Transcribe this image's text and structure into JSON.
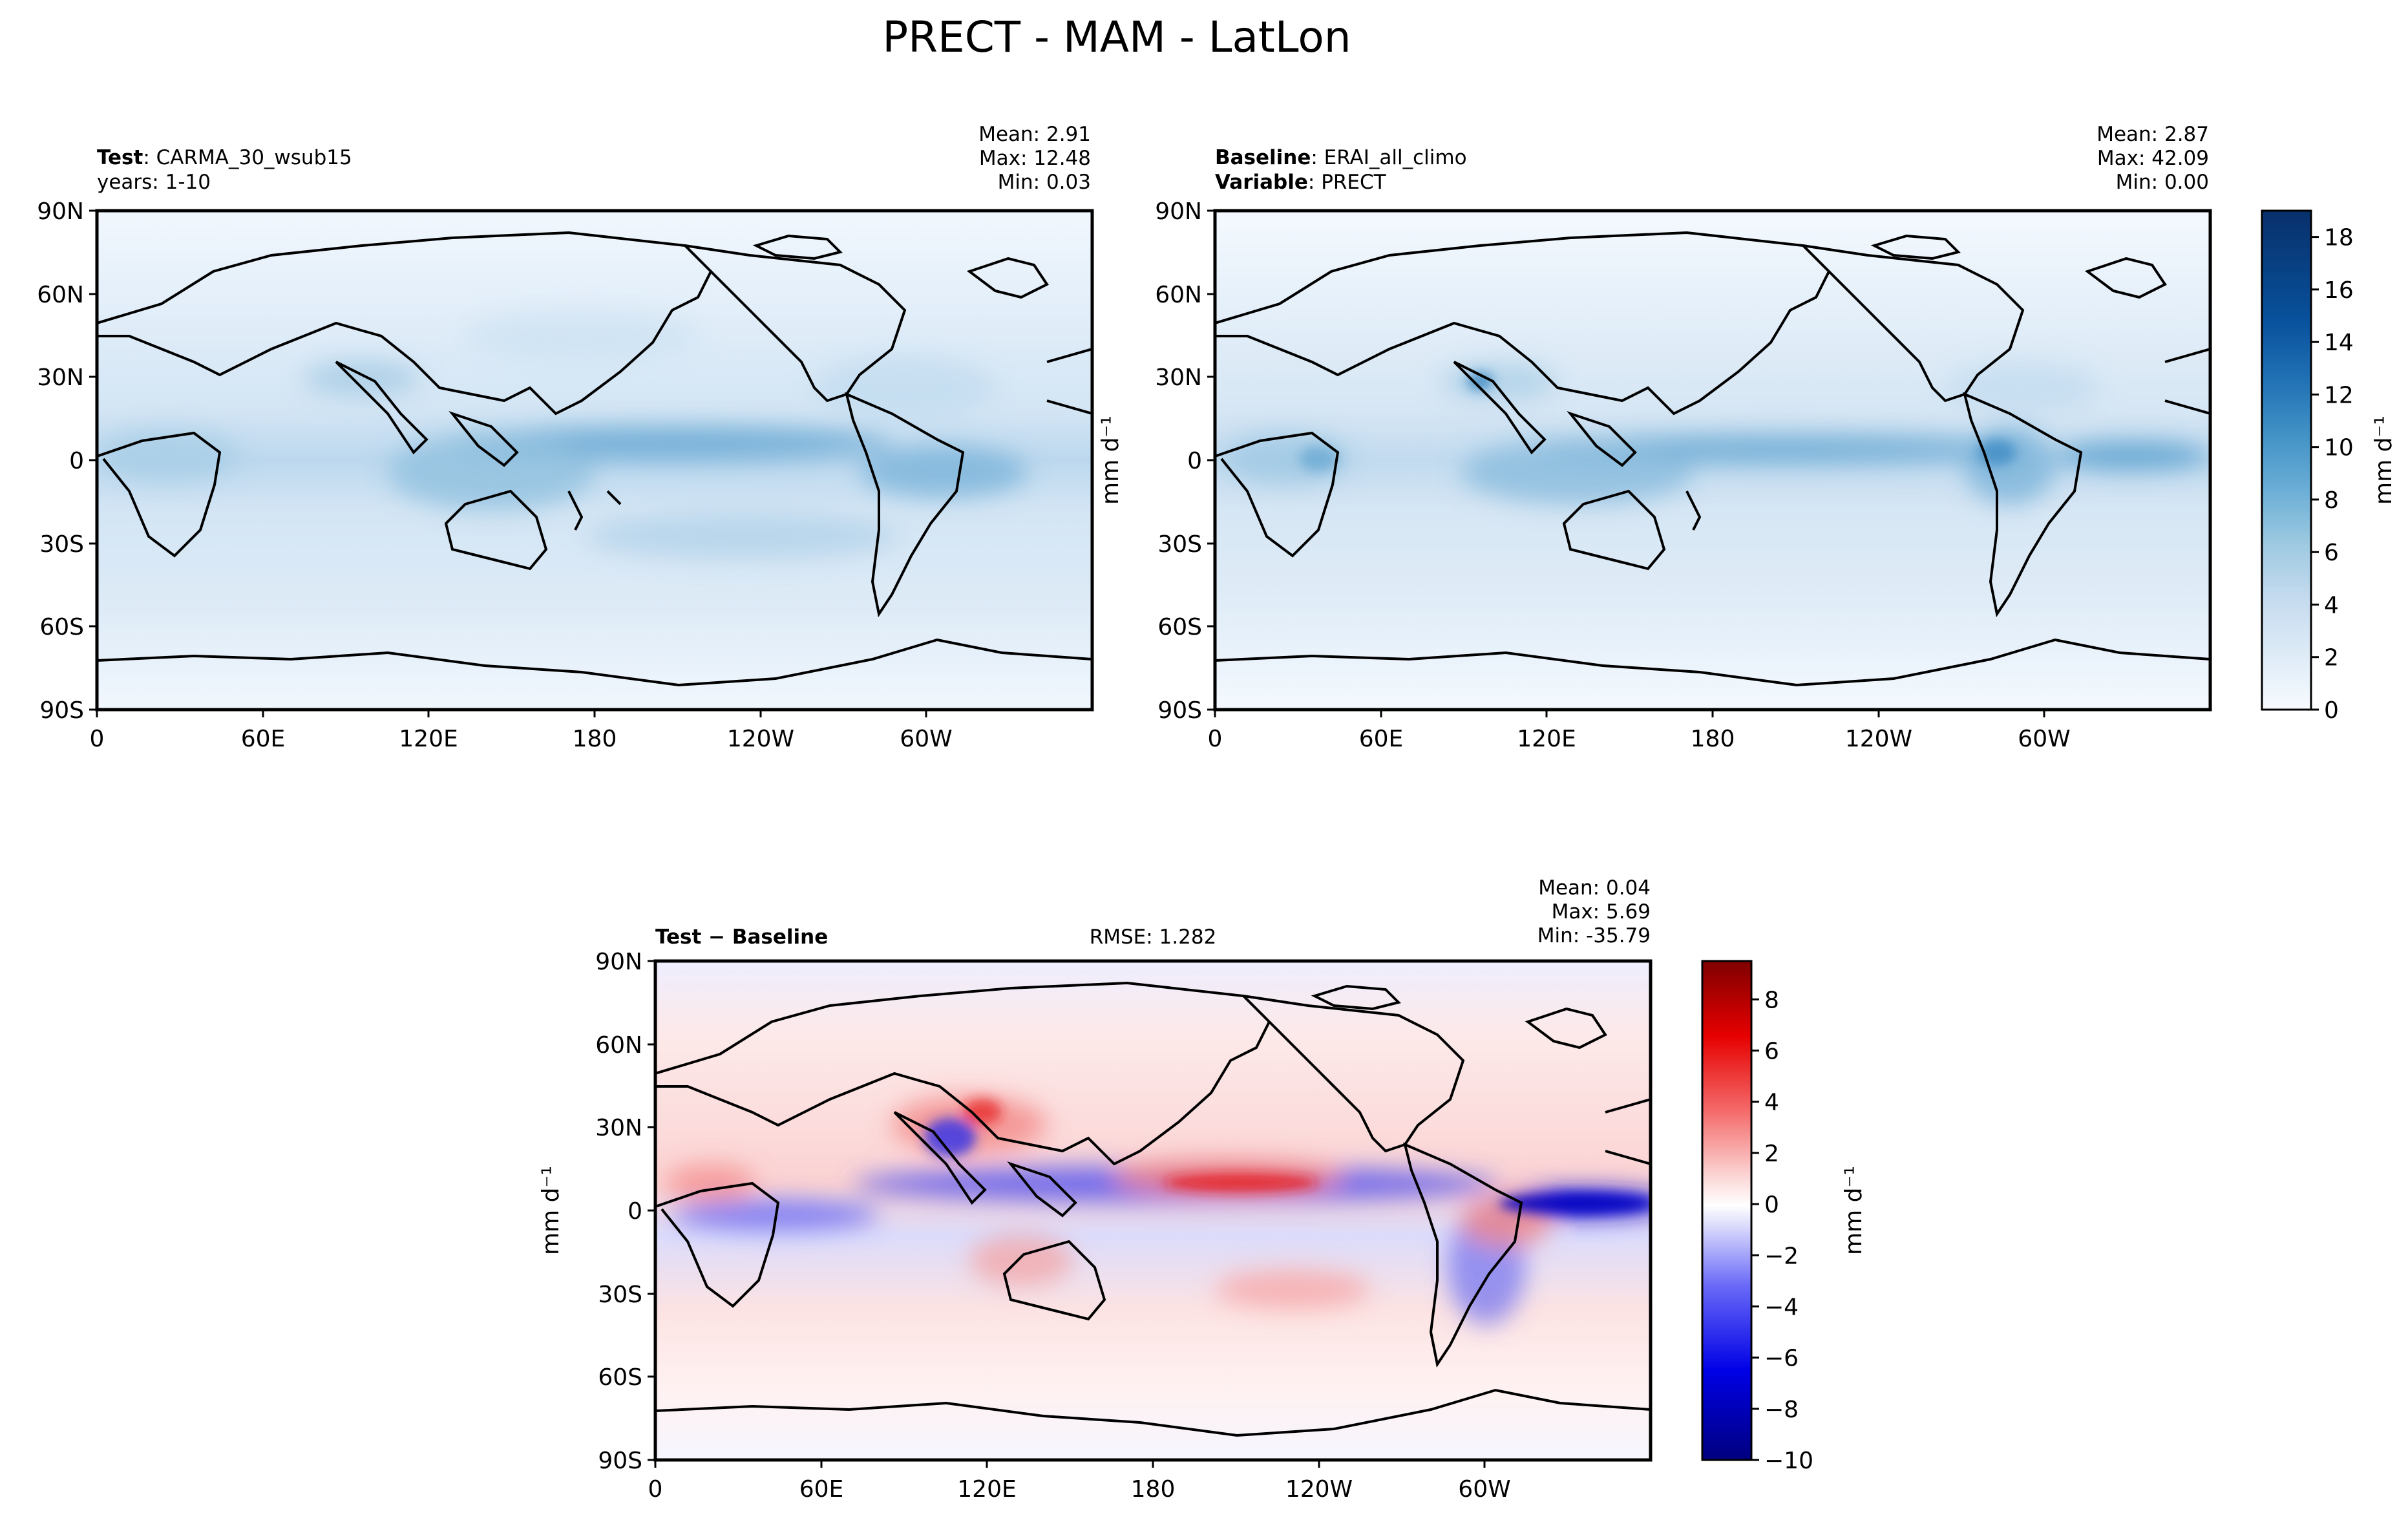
{
  "title": "PRECT - MAM - LatLon",
  "panels": {
    "test": {
      "label_bold": "Test",
      "label_rest": ": CARMA_30_wsub15",
      "line2": "years: 1-10",
      "stats": [
        "Mean:  2.91",
        "Max: 12.48",
        "Min:  0.03"
      ]
    },
    "baseline": {
      "label_bold": "Baseline",
      "label_rest": ": ERAI_all_climo",
      "line2_bold": "Variable",
      "line2_rest": ": PRECT",
      "stats": [
        "Mean:  2.87",
        "Max: 42.09",
        "Min:  0.00"
      ]
    },
    "diff": {
      "label": "Test − Baseline",
      "rmse": "RMSE: 1.282",
      "stats": [
        "Mean:  0.04",
        "Max:  5.69",
        "Min: -35.79"
      ]
    }
  },
  "units_label": "mm d⁻¹",
  "colors": {
    "blues": [
      "#f7fbff",
      "#ebf3fb",
      "#deebf7",
      "#d2e3f3",
      "#c6dbef",
      "#b2d2e8",
      "#9ecae1",
      "#84bcdb",
      "#6baed6",
      "#57a0ce",
      "#4292c6",
      "#3282be",
      "#2171b5",
      "#1561a9",
      "#08519c",
      "#08458a",
      "#083a7a",
      "#08306b"
    ],
    "diverging_low": "#00007f",
    "diverging_mid": "#ffffff",
    "diverging_high": "#7f0000",
    "coast": "#000000"
  },
  "chart_data": [
    {
      "type": "heatmap",
      "panel": "test",
      "field": "PRECT",
      "x_ticks": [
        "0",
        "60E",
        "120E",
        "180",
        "120W",
        "60W"
      ],
      "y_ticks": [
        "90N",
        "60N",
        "30N",
        "0",
        "30S",
        "60S",
        "90S"
      ],
      "xlim": [
        0,
        360
      ],
      "ylim": [
        -90,
        90
      ],
      "colorbar": "shared with baseline",
      "mean": 2.91,
      "max": 12.48,
      "min": 0.03
    },
    {
      "type": "heatmap",
      "panel": "baseline",
      "field": "PRECT",
      "x_ticks": [
        "0",
        "60E",
        "120E",
        "180",
        "120W",
        "60W"
      ],
      "y_ticks": [
        "90N",
        "60N",
        "30N",
        "0",
        "30S",
        "60S",
        "90S"
      ],
      "xlim": [
        0,
        360
      ],
      "ylim": [
        -90,
        90
      ],
      "colorbar_ticks": [
        "0",
        "2",
        "4",
        "6",
        "8",
        "10",
        "12",
        "14",
        "16",
        "18"
      ],
      "colorbar_range": [
        0,
        19
      ],
      "mean": 2.87,
      "max": 42.09,
      "min": 0.0
    },
    {
      "type": "heatmap",
      "panel": "diff",
      "field": "PRECT difference",
      "x_ticks": [
        "0",
        "60E",
        "120E",
        "180",
        "120W",
        "60W"
      ],
      "y_ticks": [
        "90N",
        "60N",
        "30N",
        "0",
        "30S",
        "60S",
        "90S"
      ],
      "xlim": [
        0,
        360
      ],
      "ylim": [
        -90,
        90
      ],
      "colorbar_ticks": [
        "−10",
        "−8",
        "−6",
        "−4",
        "−2",
        "0",
        "2",
        "4",
        "6",
        "8"
      ],
      "colorbar_range": [
        -10,
        9.5
      ],
      "mean": 0.04,
      "max": 5.69,
      "min": -35.79,
      "rmse": 1.282
    }
  ]
}
